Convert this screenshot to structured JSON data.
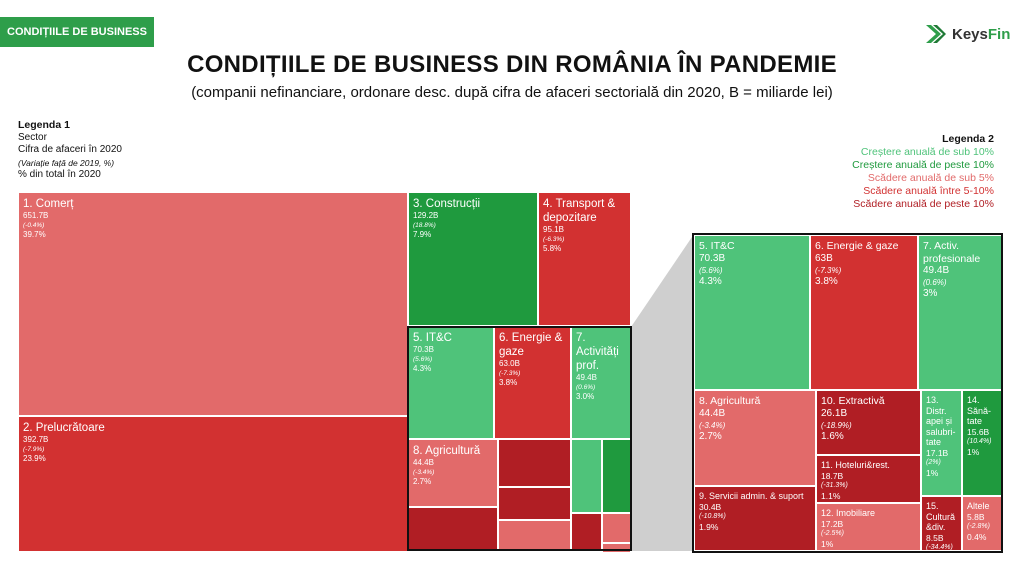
{
  "header": {
    "badge": "CONDIȚIILE DE BUSINESS",
    "title": "CONDIȚIILE DE BUSINESS DIN ROMÂNIA ÎN PANDEMIE",
    "subtitle": "(companii nefinanciare, ordonare desc. după cifra de afaceri sectorială din 2020, B = miliarde lei)"
  },
  "logo": {
    "name_part1": "Keys",
    "name_part2": "Fin"
  },
  "legend1": {
    "title": "Legenda 1",
    "line1": "Sector",
    "line2": "Cifra de afaceri în 2020",
    "line3": "(Variație față de 2019, %)",
    "line4": "% din total în 2020"
  },
  "legend2": {
    "title": "Legenda 2",
    "items": [
      {
        "label": "Creștere anuală de sub 10%",
        "color": "#4fc37a"
      },
      {
        "label": "Creștere anuală de peste 10%",
        "color": "#1f9a3e"
      },
      {
        "label": "Scădere anuală de sub 5%",
        "color": "#e26a6a"
      },
      {
        "label": "Scădere anuală între 5-10%",
        "color": "#d23131"
      },
      {
        "label": "Scădere anuală de peste 10%",
        "color": "#b01e24"
      }
    ]
  },
  "colors": {
    "cresc_sub10": "#4fc37a",
    "cresc_peste10": "#1f9a3e",
    "scad_sub5": "#e26a6a",
    "scad_5_10": "#d23131",
    "scad_peste10": "#b01e24",
    "connector": "#cfcfcf",
    "badge": "#2e9e4a"
  },
  "chart_data": [
    {
      "type": "treemap",
      "title": "Main treemap",
      "items": [
        {
          "label": "1. Comerț",
          "value": "651.7B",
          "change": "(-0.4%)",
          "share": "39.7%"
        },
        {
          "label": "2. Prelucrătoare",
          "value": "392.7B",
          "change": "(-7.9%)",
          "share": "23.9%"
        },
        {
          "label": "3. Construcții",
          "value": "129.2B",
          "change": "(18.8%)",
          "share": "7.9%"
        },
        {
          "label": "4. Transport & depozitare",
          "value": "95.1B",
          "change": "(-6.3%)",
          "share": "5.8%"
        },
        {
          "label": "5. IT&C",
          "value": "70.3B",
          "change": "(5.6%)",
          "share": "4.3%"
        },
        {
          "label": "6. Energie & gaze",
          "value": "63.0B",
          "change": "(-7.3%)",
          "share": "3.8%"
        },
        {
          "label": "7. Activități prof.",
          "value": "49.4B",
          "change": "(0.6%)",
          "share": "3.0%"
        },
        {
          "label": "8. Agricultură",
          "value": "44.4B",
          "change": "(-3.4%)",
          "share": "2.7%"
        }
      ]
    },
    {
      "type": "treemap",
      "title": "Zoom treemap",
      "items": [
        {
          "label": "5. IT&C",
          "value": "70.3B",
          "change": "(5.6%)",
          "share": "4.3%"
        },
        {
          "label": "6. Energie & gaze",
          "value": "63B",
          "change": "(-7.3%)",
          "share": "3.8%"
        },
        {
          "label": "7. Activ. profesionale",
          "value": "49.4B",
          "change": "(0.6%)",
          "share": "3%"
        },
        {
          "label": "8. Agricultură",
          "value": "44.4B",
          "change": "(-3.4%)",
          "share": "2.7%"
        },
        {
          "label": "9. Servicii admin. & suport",
          "value": "30.4B",
          "change": "(-10.8%)",
          "share": "1.9%"
        },
        {
          "label": "10. Extractivă",
          "value": "26.1B",
          "change": "(-18.9%)",
          "share": "1.6%"
        },
        {
          "label": "11. Hoteluri&rest.",
          "value": "18.7B",
          "change": "(-31.3%)",
          "share": "1.1%"
        },
        {
          "label": "12. Imobiliare",
          "value": "17.2B",
          "change": "(-2.5%)",
          "share": "1%"
        },
        {
          "label": "13. Distr. apei și salubri-tate",
          "value": "17.1B",
          "change": "(2%)",
          "share": "1%"
        },
        {
          "label": "14. Sănă-tate",
          "value": "15.6B",
          "change": "(10.4%)",
          "share": "1%"
        },
        {
          "label": "15. Cultură &div.",
          "value": "8.5B",
          "change": "(-34.4%)",
          "share": ""
        },
        {
          "label": "Altele",
          "value": "5.8B",
          "change": "(-2.8%)",
          "share": "0.4%"
        }
      ]
    }
  ]
}
